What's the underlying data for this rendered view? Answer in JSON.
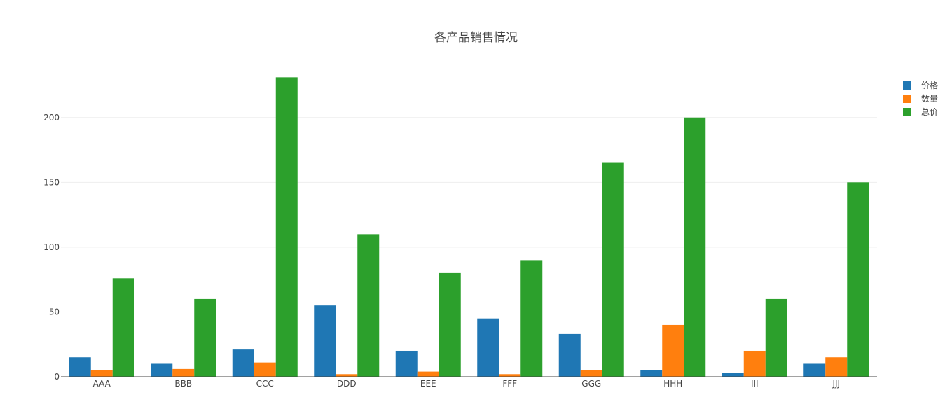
{
  "chart_data": {
    "type": "bar",
    "title": "各产品销售情况",
    "categories": [
      "AAA",
      "BBB",
      "CCC",
      "DDD",
      "EEE",
      "FFF",
      "GGG",
      "HHH",
      "III",
      "JJJ"
    ],
    "series": [
      {
        "name": "价格",
        "color": "#1f77b4",
        "values": [
          15,
          10,
          21,
          55,
          20,
          45,
          33,
          5,
          3,
          10
        ]
      },
      {
        "name": "数量",
        "color": "#ff7f0e",
        "values": [
          5,
          6,
          11,
          2,
          4,
          2,
          5,
          40,
          20,
          15
        ]
      },
      {
        "name": "总价",
        "color": "#2ca02c",
        "values": [
          76,
          60,
          231,
          110,
          80,
          90,
          165,
          200,
          60,
          150
        ]
      }
    ],
    "yticks": [
      "0",
      "50",
      "100",
      "150",
      "200"
    ],
    "ylim": [
      0,
      242
    ],
    "grid": true,
    "legend_position": "top-right"
  }
}
